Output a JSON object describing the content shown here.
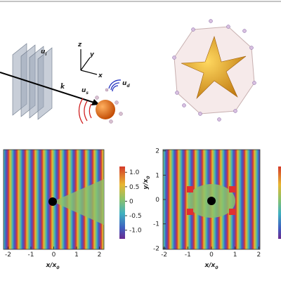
{
  "illustration": {
    "incident": {
      "main": "u",
      "sub": "i"
    },
    "wavevector": "k̂",
    "scattered": {
      "main": "u",
      "sub": "s"
    },
    "dipole": {
      "main": "u",
      "sub": "d"
    },
    "axes": [
      "z",
      "y",
      "x"
    ]
  },
  "left_panel": {
    "xticks": [
      -2,
      -1,
      0,
      1,
      2
    ],
    "xlim": [
      -2.2,
      2.2
    ],
    "xlabel": {
      "main": "x/x",
      "sub": "0"
    },
    "colorbar": {
      "lim": [
        -1.3,
        1.2
      ],
      "ticks": [
        {
          "value": 1,
          "label": "1.0"
        },
        {
          "value": 0.5,
          "label": "0.5"
        },
        0,
        {
          "value": -0.5,
          "label": "-0.5"
        },
        {
          "value": -1,
          "label": "-1.0"
        }
      ]
    }
  },
  "right_panel": {
    "xticks": [
      -2,
      -1,
      0,
      1,
      2
    ],
    "xlim": [
      -2.05,
      2.05
    ],
    "yticks": [
      -2,
      -1,
      0,
      1,
      2
    ],
    "ylim": [
      -2.05,
      2.05
    ],
    "xlabel": {
      "main": "x/x",
      "sub": "0"
    },
    "ylabel": {
      "main": "y/x",
      "sub": "0"
    }
  }
}
